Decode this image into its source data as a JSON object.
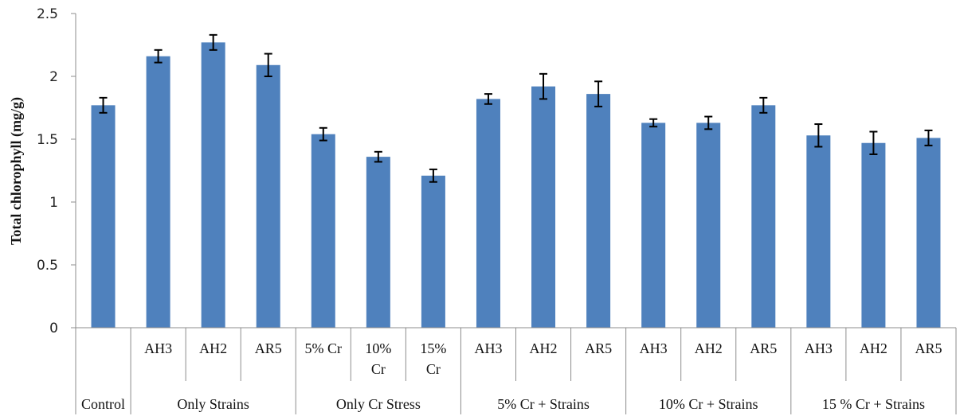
{
  "chart_data": {
    "type": "bar",
    "ylabel": "Total chlorophyll (mg/g)",
    "ylim": [
      0,
      2.5
    ],
    "yticks": [
      "0",
      "0.5",
      "1",
      "1.5",
      "2",
      "2.5"
    ],
    "grid": false,
    "bar_color": "#4f81bd",
    "categories": [
      {
        "group": "Control",
        "label": ""
      },
      {
        "group": "Only Strains",
        "label": "AH3"
      },
      {
        "group": "Only Strains",
        "label": "AH2"
      },
      {
        "group": "Only Strains",
        "label": "AR5"
      },
      {
        "group": "Only Cr Stress",
        "label": "5% Cr"
      },
      {
        "group": "Only Cr Stress",
        "label": "10% Cr"
      },
      {
        "group": "Only Cr Stress",
        "label": "15% Cr"
      },
      {
        "group": "5% Cr + Strains",
        "label": "AH3"
      },
      {
        "group": "5% Cr + Strains",
        "label": "AH2"
      },
      {
        "group": "5% Cr + Strains",
        "label": "AR5"
      },
      {
        "group": "10% Cr + Strains",
        "label": "AH3"
      },
      {
        "group": "10% Cr + Strains",
        "label": "AH2"
      },
      {
        "group": "10% Cr + Strains",
        "label": "AR5"
      },
      {
        "group": "15 % Cr + Strains",
        "label": "AH3"
      },
      {
        "group": "15 % Cr + Strains",
        "label": "AH2"
      },
      {
        "group": "15 % Cr + Strains",
        "label": "AR5"
      }
    ],
    "values": [
      1.77,
      2.16,
      2.27,
      2.09,
      1.54,
      1.36,
      1.21,
      1.82,
      1.92,
      1.86,
      1.63,
      1.63,
      1.77,
      1.53,
      1.47,
      1.51
    ],
    "errors": [
      0.06,
      0.05,
      0.06,
      0.09,
      0.05,
      0.04,
      0.05,
      0.04,
      0.1,
      0.1,
      0.03,
      0.05,
      0.06,
      0.09,
      0.09,
      0.06
    ],
    "groups": [
      "Control",
      "Only Strains",
      "Only Cr Stress",
      "5% Cr + Strains",
      "10% Cr + Strains",
      "15 % Cr + Strains"
    ]
  }
}
